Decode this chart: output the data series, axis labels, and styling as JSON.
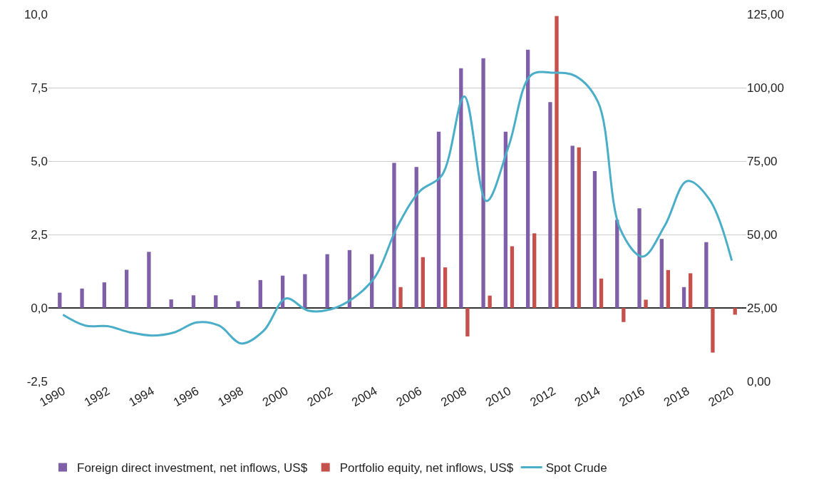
{
  "chart_data": {
    "type": "bar",
    "x": [
      1990,
      1991,
      1992,
      1993,
      1994,
      1995,
      1996,
      1997,
      1998,
      1999,
      2000,
      2001,
      2002,
      2003,
      2004,
      2005,
      2006,
      2007,
      2008,
      2009,
      2010,
      2011,
      2012,
      2013,
      2014,
      2015,
      2016,
      2017,
      2018,
      2019,
      2020
    ],
    "series": [
      {
        "name": "Foreign direct investment, net inflows, US$",
        "color": "#7f5fa8",
        "values": [
          0.52,
          0.66,
          0.87,
          1.3,
          1.91,
          0.29,
          0.43,
          0.43,
          0.23,
          0.95,
          1.1,
          1.15,
          1.83,
          1.97,
          1.83,
          4.94,
          4.8,
          6.0,
          8.16,
          8.5,
          6.0,
          8.79,
          7.01,
          5.52,
          4.66,
          3.0,
          3.39,
          2.35,
          0.71,
          2.24,
          null
        ]
      },
      {
        "name": "Portfolio equity, net inflows, US$",
        "color": "#c5504c",
        "values": [
          null,
          null,
          null,
          null,
          null,
          null,
          null,
          null,
          null,
          null,
          null,
          null,
          null,
          null,
          null,
          0.71,
          1.73,
          1.38,
          -0.97,
          0.42,
          2.1,
          2.54,
          9.94,
          5.47,
          1.0,
          -0.48,
          0.28,
          1.29,
          1.18,
          -1.52,
          -0.23
        ]
      },
      {
        "name": "Spot Crude",
        "type": "line",
        "axis": "y2",
        "color": "#4aaec9",
        "values": [
          22.7,
          19.0,
          18.8,
          16.7,
          15.6,
          16.7,
          20.1,
          19.0,
          12.9,
          17.2,
          28.2,
          24.1,
          24.5,
          28.2,
          35.6,
          52.7,
          64.7,
          70.2,
          97.0,
          61.4,
          80.3,
          104.3,
          105.1,
          103.9,
          95.1,
          51.8,
          42.5,
          53.1,
          68.2,
          61.9,
          41.1
        ]
      }
    ],
    "xlim": [
      1989.35,
      2020.65
    ],
    "xticks": [
      1990,
      1992,
      1994,
      1996,
      1998,
      2000,
      2002,
      2004,
      2006,
      2008,
      2010,
      2012,
      2014,
      2016,
      2018,
      2020
    ],
    "ylim": [
      -2.5,
      10
    ],
    "yticks": [
      {
        "value": -2.5,
        "label": "-2,5"
      },
      {
        "value": 0,
        "label": "0,0"
      },
      {
        "value": 2.5,
        "label": "2,5"
      },
      {
        "value": 5,
        "label": "5,0"
      },
      {
        "value": 7.5,
        "label": "7,5"
      },
      {
        "value": 10,
        "label": "10,0"
      }
    ],
    "y2lim": [
      0,
      125
    ],
    "y2ticks": [
      {
        "value": 0,
        "label": "0,00"
      },
      {
        "value": 25,
        "label": "25,00"
      },
      {
        "value": 50,
        "label": "50,00"
      },
      {
        "value": 75,
        "label": "75,00"
      },
      {
        "value": 100,
        "label": "100,00"
      },
      {
        "value": 125,
        "label": "125,00"
      }
    ],
    "grid": "y",
    "legend": "bottom"
  }
}
